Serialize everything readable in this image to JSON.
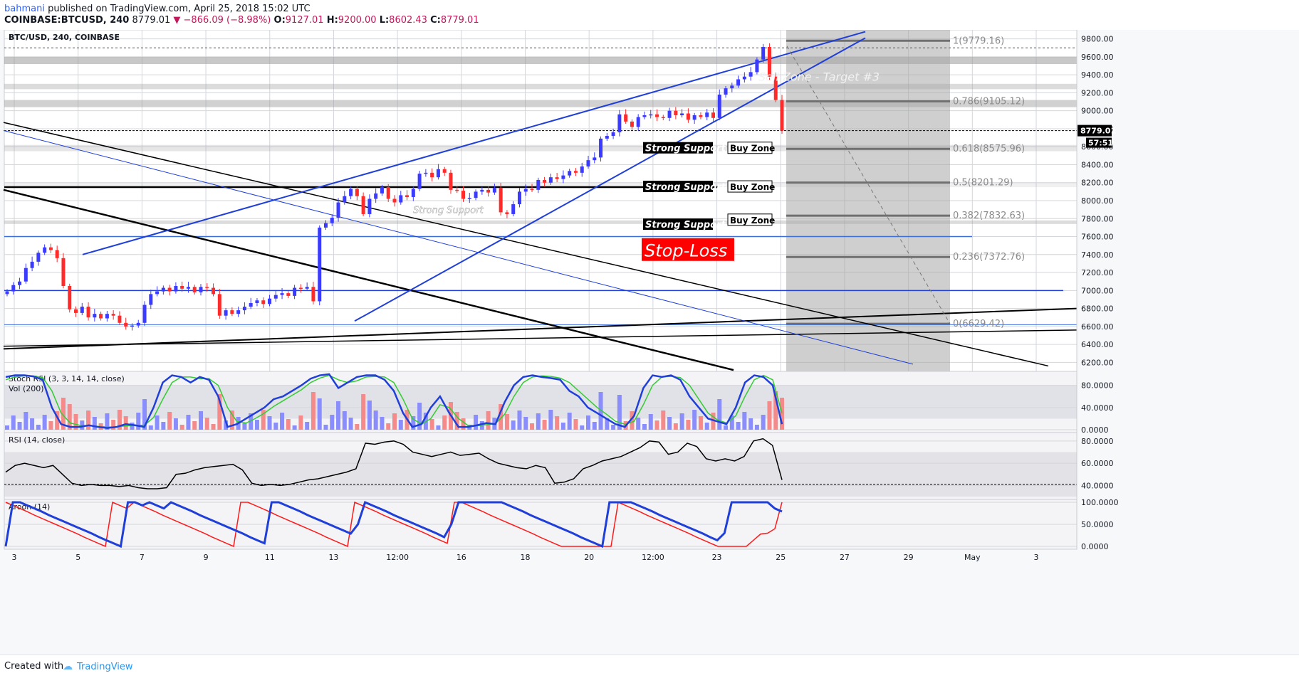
{
  "header": {
    "author": "bahmani",
    "published": "published on TradingView.com, April 25, 2018 15:02 UTC",
    "symbol": "COINBASE:BTCUSD, 240",
    "last": "8779.01",
    "change": "▼ −866.09 (−8.98%)",
    "o_label": "O:",
    "o_value": "9127.01",
    "h_label": "H:",
    "h_value": "9200.00",
    "l_label": "L:",
    "l_value": "8602.43",
    "c_label": "C:",
    "c_value": "8779.01"
  },
  "footer": {
    "created_with": "Created with",
    "brand": "TradingView",
    "brand_icon": "cloud-icon"
  },
  "colors": {
    "up": "#3b3bff",
    "down": "#ff2a2a",
    "trend_blue": "#1f3fd8",
    "trend_black": "#000000",
    "stoch_k": "#1f3fd8",
    "stoch_d": "#33cc33",
    "vol_up": "#8a8dfc",
    "vol_down": "#f58a8a",
    "stoploss_bg": "#ff0000",
    "zone_grey": "#9a9a9a"
  },
  "chart_data": [
    {
      "type": "candlestick",
      "title": "BTC/USD, 240, COINBASE",
      "price_axis": {
        "ticks": [
          "9800.00",
          "9600.00",
          "9400.00",
          "9200.00",
          "9000.00",
          "8800.00",
          "8600.00",
          "8400.00",
          "8200.00",
          "8000.00",
          "7800.00",
          "7600.00",
          "7400.00",
          "7200.00",
          "7000.00",
          "6800.00",
          "6600.00",
          "6400.00",
          "6200.00"
        ],
        "range": [
          6100,
          9900
        ]
      },
      "time_axis": {
        "ticks": [
          "3",
          "5",
          "7",
          "9",
          "11",
          "13",
          "12:00",
          "16",
          "18",
          "20",
          "12:00",
          "23",
          "25",
          "27",
          "29",
          "May",
          "3"
        ]
      },
      "last_price_label": "8779.01",
      "countdown_label": "57:51",
      "closes": [
        6990,
        7060,
        7100,
        7250,
        7320,
        7420,
        7480,
        7450,
        7360,
        7050,
        6790,
        6750,
        6820,
        6700,
        6740,
        6690,
        6740,
        6720,
        6640,
        6600,
        6610,
        6640,
        6840,
        6960,
        6990,
        7030,
        6990,
        7050,
        7020,
        7040,
        6980,
        7040,
        7030,
        6960,
        6720,
        6780,
        6740,
        6780,
        6820,
        6860,
        6890,
        6850,
        6910,
        6950,
        6970,
        6940,
        7030,
        7020,
        7040,
        6880,
        7700,
        7750,
        7810,
        7980,
        8050,
        8130,
        8050,
        7850,
        8020,
        8080,
        8150,
        8020,
        7980,
        8060,
        8040,
        8130,
        8300,
        8310,
        8260,
        8350,
        8310,
        8120,
        8110,
        8020,
        8030,
        8100,
        8120,
        8090,
        8140,
        7870,
        7850,
        7960,
        8100,
        8130,
        8120,
        8230,
        8200,
        8260,
        8240,
        8280,
        8330,
        8310,
        8380,
        8450,
        8480,
        8690,
        8720,
        8760,
        8960,
        8880,
        8820,
        8930,
        8950,
        8960,
        8930,
        8920,
        9000,
        8950,
        8970,
        8900,
        8950,
        8930,
        8980,
        8920,
        9180,
        9250,
        9280,
        9350,
        9380,
        9430,
        9570,
        9710,
        9380,
        9120,
        8779
      ],
      "annotations": [
        {
          "text": "Sell Zone - Target #3",
          "price": 9380
        },
        {
          "text": "Strong Support",
          "price": 7900
        },
        {
          "text": "Strong Support",
          "price": 8580
        },
        {
          "text": "Strong Support",
          "price": 8150
        },
        {
          "text": "Strong Support",
          "price": 7730
        },
        {
          "text": "Buy Zone",
          "price": 8580
        },
        {
          "text": "Buy Zone",
          "price": 8150
        },
        {
          "text": "Buy Zone",
          "price": 7780
        },
        {
          "text": "Stop-Loss",
          "price": 7440
        }
      ],
      "fib_levels": [
        {
          "label": "1(9779.16)",
          "price": 9779.16
        },
        {
          "label": "0.786(9105.12)",
          "price": 9105.12
        },
        {
          "label": "0.618(8575.96)",
          "price": 8575.96
        },
        {
          "label": "0.5(8201.29)",
          "price": 8201.29
        },
        {
          "label": "0.382(7832.63)",
          "price": 7832.63
        },
        {
          "label": "0.236(7372.76)",
          "price": 7372.76
        },
        {
          "label": "0(6629.42)",
          "price": 6629.42
        }
      ]
    },
    {
      "type": "line",
      "title": "Stoch RSI (3, 3, 14, 14, close)",
      "subtitle": "Vol (200)",
      "ticks": [
        "80.0000",
        "40.0000",
        "0.0000"
      ],
      "range": [
        0,
        100
      ],
      "series": [
        {
          "name": "K",
          "values": [
            95,
            98,
            98,
            96,
            90,
            40,
            10,
            5,
            5,
            8,
            5,
            3,
            5,
            10,
            8,
            5,
            40,
            85,
            98,
            95,
            85,
            95,
            90,
            60,
            5,
            10,
            20,
            30,
            40,
            55,
            60,
            70,
            80,
            92,
            98,
            100,
            75,
            85,
            95,
            98,
            98,
            90,
            70,
            30,
            5,
            10,
            40,
            60,
            30,
            5,
            5,
            8,
            12,
            10,
            50,
            80,
            95,
            98,
            95,
            93,
            90,
            70,
            60,
            40,
            30,
            20,
            10,
            5,
            25,
            75,
            98,
            95,
            98,
            90,
            60,
            40,
            20,
            15,
            10,
            40,
            85,
            98,
            95,
            80,
            10
          ]
        },
        {
          "name": "D",
          "values": [
            90,
            95,
            97,
            97,
            94,
            70,
            30,
            12,
            8,
            7,
            6,
            5,
            5,
            7,
            8,
            8,
            22,
            55,
            85,
            95,
            95,
            92,
            92,
            80,
            40,
            15,
            12,
            20,
            30,
            42,
            52,
            62,
            72,
            85,
            93,
            98,
            90,
            85,
            88,
            95,
            96,
            95,
            85,
            55,
            20,
            10,
            20,
            45,
            40,
            20,
            8,
            7,
            9,
            11,
            28,
            60,
            85,
            95,
            97,
            96,
            93,
            85,
            70,
            55,
            40,
            28,
            15,
            10,
            15,
            45,
            80,
            95,
            96,
            94,
            80,
            55,
            30,
            18,
            12,
            25,
            60,
            90,
            98,
            90,
            30
          ]
        }
      ]
    },
    {
      "type": "line",
      "title": "RSI (14, close)",
      "ticks": [
        "80.0000",
        "60.0000",
        "40.0000"
      ],
      "range": [
        30,
        85
      ],
      "series": [
        {
          "name": "RSI",
          "values": [
            52,
            58,
            60,
            58,
            56,
            58,
            50,
            42,
            40,
            41,
            40,
            40,
            39,
            40,
            38,
            37,
            37,
            38,
            50,
            51,
            54,
            56,
            57,
            58,
            59,
            54,
            42,
            40,
            41,
            40,
            41,
            43,
            45,
            46,
            48,
            50,
            52,
            55,
            78,
            77,
            79,
            80,
            77,
            70,
            68,
            66,
            68,
            70,
            67,
            68,
            69,
            64,
            60,
            58,
            56,
            55,
            58,
            56,
            42,
            43,
            46,
            55,
            58,
            62,
            64,
            66,
            70,
            74,
            80,
            79,
            68,
            70,
            78,
            75,
            64,
            62,
            64,
            62,
            66,
            80,
            82,
            76,
            45
          ]
        }
      ]
    },
    {
      "type": "line",
      "title": "Aroon (14)",
      "ticks": [
        "100.0000",
        "50.0000",
        "0.0000"
      ],
      "range": [
        0,
        100
      ],
      "series": [
        {
          "name": "Aroon Up",
          "values": [
            0,
            100,
            100,
            93,
            86,
            79,
            71,
            64,
            57,
            50,
            43,
            36,
            29,
            21,
            14,
            7,
            0,
            100,
            100,
            93,
            100,
            93,
            86,
            100,
            93,
            86,
            79,
            71,
            64,
            57,
            50,
            43,
            36,
            29,
            21,
            14,
            7,
            100,
            100,
            93,
            86,
            79,
            71,
            64,
            57,
            50,
            43,
            36,
            29,
            50,
            100,
            93,
            86,
            79,
            71,
            64,
            57,
            50,
            43,
            36,
            29,
            21,
            50,
            100,
            100,
            100,
            100,
            100,
            100,
            100,
            93,
            86,
            79,
            71,
            64,
            57,
            50,
            43,
            36,
            29,
            21,
            14,
            7,
            0,
            100,
            100,
            100,
            100,
            93,
            86,
            79,
            71,
            64,
            57,
            50,
            43,
            36,
            29,
            21,
            14,
            30,
            100,
            100,
            100,
            100,
            100,
            100,
            86,
            79
          ]
        },
        {
          "name": "Aroon Down",
          "values": [
            100,
            93,
            86,
            79,
            71,
            64,
            57,
            50,
            43,
            36,
            29,
            21,
            14,
            7,
            0,
            100,
            93,
            86,
            100,
            93,
            86,
            79,
            71,
            64,
            57,
            50,
            43,
            36,
            29,
            21,
            14,
            7,
            0,
            100,
            100,
            93,
            86,
            79,
            71,
            64,
            57,
            50,
            43,
            36,
            29,
            21,
            14,
            7,
            0,
            100,
            93,
            86,
            79,
            71,
            64,
            57,
            50,
            43,
            36,
            29,
            21,
            14,
            7,
            100,
            100,
            93,
            86,
            79,
            71,
            64,
            57,
            50,
            43,
            36,
            29,
            21,
            14,
            7,
            0,
            0,
            0,
            0,
            0,
            0,
            0,
            0,
            100,
            93,
            86,
            79,
            71,
            64,
            57,
            50,
            43,
            36,
            29,
            21,
            14,
            7,
            0,
            0,
            0,
            0,
            0,
            14,
            28,
            30,
            40,
            100
          ]
        }
      ]
    }
  ]
}
